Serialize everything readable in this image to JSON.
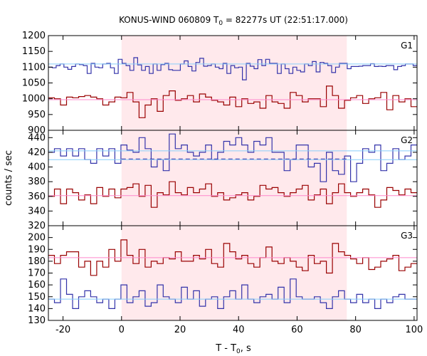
{
  "title": {
    "main": "KONUS-WIND 060809 T",
    "sub": "0",
    "rest": " = 82277s UT (22:51:17.000)"
  },
  "axes": {
    "xlabel_main": "T - T",
    "xlabel_sub": "0",
    "xlabel_rest": ", s",
    "ylabel": "counts / sec"
  },
  "colors": {
    "blue": "#3333aa",
    "red": "#990000",
    "blue_fit": "#87cefa",
    "red_fit": "#ff88cc",
    "shade": "#ffe9ec"
  },
  "chart_data": [
    {
      "type": "line",
      "panel": "G1",
      "xlim": [
        -25,
        101
      ],
      "ylim": [
        900,
        1200
      ],
      "xticks": [
        -20,
        0,
        20,
        40,
        60,
        80,
        100
      ],
      "yticks": [
        900,
        950,
        1000,
        1050,
        1100,
        1150,
        1200
      ],
      "shaded_region": [
        0,
        77
      ],
      "grid": false,
      "series": [
        {
          "color": "blue",
          "step": 2.944,
          "x_start": -25,
          "values": [
            1100,
            1098,
            1105,
            1110,
            1100,
            1093,
            1102,
            1110,
            1108,
            1105,
            1080,
            1112,
            1100,
            1098,
            1110,
            1112,
            1098,
            1080,
            1125,
            1112,
            1105,
            1090,
            1130,
            1107,
            1090,
            1102,
            1080,
            1110,
            1090,
            1108,
            1112,
            1092,
            1090,
            1090,
            1110,
            1120,
            1102,
            1088,
            1115,
            1128,
            1103,
            1105,
            1110,
            1100,
            1095,
            1112,
            1080,
            1105,
            1098,
            1100,
            1060,
            1112,
            1103,
            1095,
            1124,
            1105,
            1125,
            1112,
            1112,
            1080,
            1110,
            1095,
            1080,
            1100,
            1090,
            1085,
            1110,
            1105,
            1118,
            1085,
            1115,
            1112,
            1105,
            1083,
            1100,
            1112,
            1112,
            1095,
            1102,
            1102,
            1103,
            1105,
            1105,
            1111,
            1102,
            1103,
            1102,
            1105,
            1105,
            1092,
            1102,
            1105,
            1110,
            1110,
            1105
          ],
          "x_values_note": ""
        },
        {
          "color": "red",
          "values": [
            1003,
            1000,
            980,
            1005,
            1003,
            1007,
            1010,
            1005,
            1000,
            980,
            990,
            1005,
            1003,
            1020,
            990,
            940,
            980,
            1000,
            960,
            1010,
            1025,
            995,
            1000,
            1010,
            990,
            1015,
            1005,
            995,
            990,
            980,
            1005,
            975,
            1000,
            985,
            990,
            970,
            1010,
            990,
            985,
            970,
            1020,
            1010,
            990,
            1000,
            1000,
            975,
            1040,
            1010,
            970,
            995,
            1003,
            1010,
            985,
            1000,
            1003,
            1020,
            965,
            1010,
            990,
            1000,
            975
          ]
        },
        {
          "color": "blue_fit",
          "constant": 1110
        },
        {
          "color": "red_fit",
          "constant": 997
        }
      ]
    },
    {
      "type": "line",
      "panel": "G2",
      "xlim": [
        -25,
        101
      ],
      "ylim": [
        320,
        450
      ],
      "xticks": [
        -20,
        0,
        20,
        40,
        60,
        80,
        100
      ],
      "yticks": [
        320,
        340,
        360,
        380,
        400,
        420,
        440
      ],
      "shaded_region": [
        0,
        77
      ],
      "grid": false,
      "series": [
        {
          "color": "blue",
          "values": [
            420,
            425,
            415,
            425,
            415,
            425,
            410,
            405,
            425,
            415,
            425,
            405,
            430,
            423,
            420,
            440,
            425,
            400,
            410,
            395,
            445,
            425,
            430,
            420,
            415,
            420,
            430,
            410,
            420,
            435,
            430,
            440,
            430,
            420,
            435,
            430,
            440,
            420,
            420,
            395,
            410,
            430,
            430,
            400,
            405,
            380,
            420,
            395,
            390,
            415,
            380,
            405,
            425,
            420,
            430,
            395,
            405,
            425,
            410,
            415,
            430
          ]
        },
        {
          "color": "red",
          "values": [
            360,
            370,
            350,
            370,
            365,
            355,
            362,
            350,
            372,
            360,
            370,
            358,
            370,
            372,
            377,
            360,
            375,
            345,
            365,
            362,
            380,
            365,
            362,
            372,
            365,
            370,
            377,
            360,
            365,
            355,
            358,
            362,
            365,
            355,
            360,
            375,
            370,
            372,
            365,
            360,
            365,
            370,
            375,
            355,
            362,
            370,
            350,
            365,
            377,
            365,
            360,
            365,
            370,
            362,
            345,
            355,
            372,
            368,
            362,
            370,
            365
          ]
        },
        {
          "color": "blue_fit",
          "constant": 410
        },
        {
          "color": "blue_fit",
          "constant": 422
        },
        {
          "color": "red_fit",
          "constant": 361
        },
        {
          "color": "blue",
          "constant": 411,
          "dashed": true,
          "x_range": [
            0,
            77
          ]
        }
      ],
      "label": "G2"
    },
    {
      "type": "line",
      "panel": "G3",
      "xlim": [
        -25,
        101
      ],
      "ylim": [
        130,
        210
      ],
      "xticks": [
        -20,
        0,
        20,
        40,
        60,
        80,
        100
      ],
      "yticks": [
        130,
        140,
        150,
        160,
        170,
        180,
        190,
        200
      ],
      "shaded_region": [
        0,
        77
      ],
      "grid": false,
      "series": [
        {
          "color": "red",
          "values": [
            185,
            178,
            185,
            188,
            188,
            175,
            180,
            168,
            180,
            175,
            190,
            180,
            198,
            185,
            178,
            190,
            175,
            180,
            178,
            183,
            182,
            188,
            180,
            180,
            185,
            182,
            190,
            178,
            175,
            195,
            188,
            182,
            185,
            178,
            175,
            183,
            192,
            180,
            178,
            183,
            180,
            175,
            172,
            185,
            178,
            180,
            170,
            195,
            188,
            185,
            182,
            178,
            183,
            173,
            175,
            180,
            182,
            185,
            172,
            175,
            178
          ]
        },
        {
          "color": "blue",
          "values": [
            148,
            145,
            165,
            152,
            140,
            150,
            155,
            150,
            145,
            148,
            140,
            148,
            160,
            145,
            150,
            155,
            142,
            145,
            160,
            150,
            148,
            145,
            158,
            148,
            155,
            142,
            148,
            150,
            140,
            150,
            155,
            148,
            160,
            148,
            145,
            150,
            152,
            148,
            158,
            145,
            165,
            150,
            148,
            148,
            150,
            145,
            140,
            150,
            155,
            148,
            145,
            152,
            145,
            148,
            140,
            148,
            145,
            150,
            152,
            148,
            148
          ]
        },
        {
          "color": "red_fit",
          "constant": 183
        },
        {
          "color": "blue_fit",
          "constant": 148
        }
      ],
      "label": "G3"
    }
  ],
  "panel_labels": [
    "G1",
    "G2",
    "G3"
  ]
}
